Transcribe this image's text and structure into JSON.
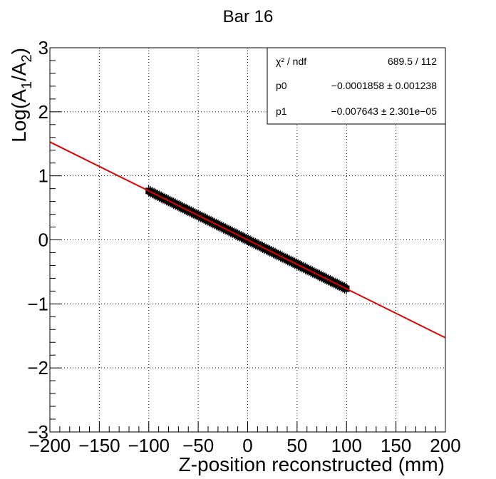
{
  "chart_data": {
    "type": "scatter",
    "title": "Bar 16",
    "xlabel": "Z-position reconstructed (mm)",
    "ylabel": "Log(A1/A2)",
    "xlim": [
      -200,
      200
    ],
    "ylim": [
      -3,
      3
    ],
    "x_ticks": [
      -200,
      -150,
      -100,
      -50,
      0,
      50,
      100,
      150,
      200
    ],
    "x_tick_labels": [
      "−200",
      "−150",
      "−100",
      "−50",
      "0",
      "50",
      "100",
      "150",
      "200"
    ],
    "y_ticks": [
      -3,
      -2,
      -1,
      0,
      1,
      2,
      3
    ],
    "y_tick_labels": [
      "−3",
      "−2",
      "−1",
      "0",
      "1",
      "2",
      "3"
    ],
    "grid": true,
    "data_range": [
      -100,
      100
    ],
    "data_step": 1.8,
    "fit": {
      "function": "pol1",
      "p0": -0.0001858,
      "p1": -0.007643,
      "color": "#e00000"
    },
    "stats_box": {
      "position": "top-right",
      "rows": [
        {
          "label": "χ² / ndf",
          "value": "689.5 / 112"
        },
        {
          "label": "p0",
          "value": "−0.0001858 ± 0.001238"
        },
        {
          "label": "p1",
          "value": "−0.007643 ± 2.301e−05"
        }
      ]
    },
    "marker_color": "#000000"
  }
}
